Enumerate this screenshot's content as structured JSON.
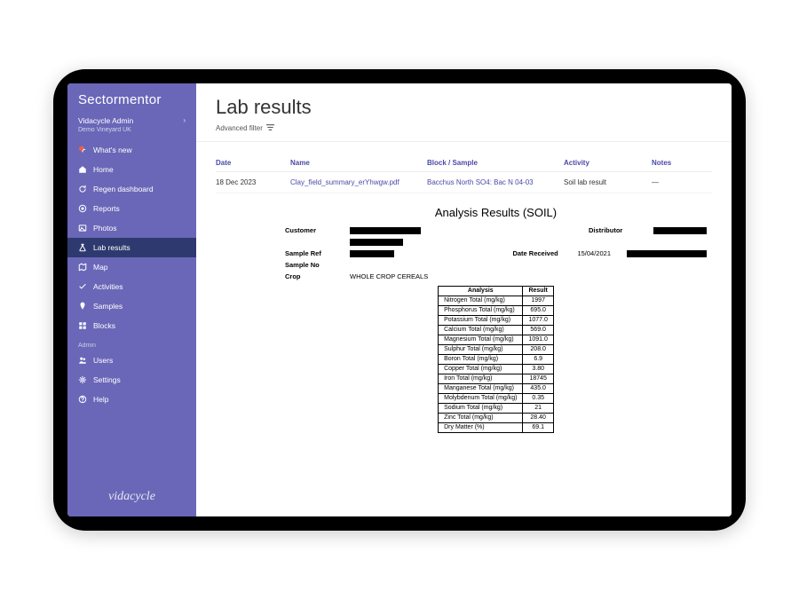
{
  "brand": "Sectormentor",
  "account": {
    "name": "Vidacycle Admin",
    "org": "Demo Vineyard UK"
  },
  "sidebar": {
    "items": [
      {
        "label": "What's new",
        "icon": "sparkle",
        "badge": true
      },
      {
        "label": "Home",
        "icon": "home"
      },
      {
        "label": "Regen dashboard",
        "icon": "refresh"
      },
      {
        "label": "Reports",
        "icon": "target"
      },
      {
        "label": "Photos",
        "icon": "image"
      },
      {
        "label": "Lab results",
        "icon": "flask",
        "active": true
      },
      {
        "label": "Map",
        "icon": "map"
      },
      {
        "label": "Activities",
        "icon": "check"
      },
      {
        "label": "Samples",
        "icon": "pin"
      },
      {
        "label": "Blocks",
        "icon": "blocks"
      }
    ],
    "admin_label": "Admin",
    "admin_items": [
      {
        "label": "Users",
        "icon": "users"
      },
      {
        "label": "Settings",
        "icon": "gear"
      },
      {
        "label": "Help",
        "icon": "help"
      }
    ]
  },
  "footer_logo": "vidacycle",
  "page": {
    "title": "Lab results",
    "advanced_filter": "Advanced filter"
  },
  "table": {
    "columns": [
      "Date",
      "Name",
      "Block / Sample",
      "Activity",
      "Notes"
    ],
    "rows": [
      {
        "date": "18 Dec 2023",
        "name": "Clay_field_summary_erYhwgw.pdf",
        "block": "Bacchus North SO4: Bac N 04-03",
        "activity": "Soil lab result",
        "notes": "—"
      }
    ]
  },
  "report": {
    "title": "Analysis Results  (SOIL)",
    "meta": {
      "customer_label": "Customer",
      "distributor_label": "Distributor",
      "sample_ref_label": "Sample Ref",
      "date_received_label": "Date Received",
      "date_received": "15/04/2021",
      "sample_no_label": "Sample No",
      "crop_label": "Crop",
      "crop": "WHOLE CROP CEREALS"
    },
    "analysis": {
      "header_analysis": "Analysis",
      "header_result": "Result",
      "rows": [
        {
          "a": "Nitrogen Total (mg/kg)",
          "r": "1997"
        },
        {
          "a": "Phosphorus Total (mg/kg)",
          "r": "695.0"
        },
        {
          "a": "Potassium Total (mg/kg)",
          "r": "1077.0"
        },
        {
          "a": "Calcium Total (mg/kg)",
          "r": "569.0"
        },
        {
          "a": "Magnesium Total (mg/kg)",
          "r": "1091.0"
        },
        {
          "a": "Sulphur Total (mg/kg)",
          "r": "208.0"
        },
        {
          "a": "Boron Total (mg/kg)",
          "r": "6.9"
        },
        {
          "a": "Copper Total (mg/kg)",
          "r": "3.80"
        },
        {
          "a": "Iron Total (mg/kg)",
          "r": "18745"
        },
        {
          "a": "Manganese Total (mg/kg)",
          "r": "435.0"
        },
        {
          "a": "Molybdenum Total (mg/kg)",
          "r": "0.35"
        },
        {
          "a": "Sodium Total (mg/kg)",
          "r": "21"
        },
        {
          "a": "Zinc Total (mg/kg)",
          "r": "28.40"
        },
        {
          "a": "Dry Matter (%)",
          "r": "69.1"
        }
      ]
    }
  },
  "colors": {
    "sidebar_bg": "#6a67b8",
    "sidebar_active": "#2e3a6f",
    "link": "#4a49a8",
    "badge": "#ff5a3c"
  }
}
